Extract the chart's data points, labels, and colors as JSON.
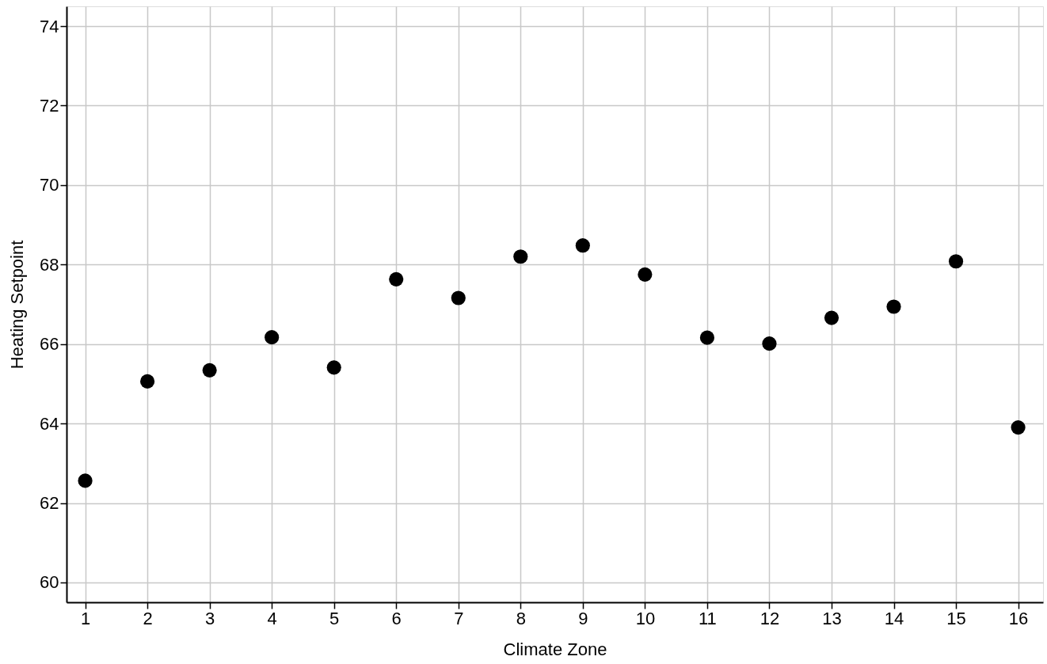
{
  "chart_data": {
    "type": "scatter",
    "xlabel": "Climate Zone",
    "ylabel": "Heating Setpoint",
    "x": [
      1,
      2,
      3,
      4,
      5,
      6,
      7,
      8,
      9,
      10,
      11,
      12,
      13,
      14,
      15,
      16
    ],
    "series": [
      {
        "color": "#000000",
        "values": [
          62.56,
          65.06,
          65.34,
          66.17,
          65.41,
          67.63,
          67.16,
          68.2,
          68.48,
          67.75,
          66.16,
          66.01,
          66.66,
          66.94,
          68.08,
          63.9
        ]
      }
    ],
    "xlim": [
      0.7,
      16.4
    ],
    "xticks": [
      1,
      2,
      3,
      4,
      5,
      6,
      7,
      8,
      9,
      10,
      11,
      12,
      13,
      14,
      15,
      16
    ],
    "ylim": [
      59.5,
      74.5
    ],
    "yticks": [
      60,
      62,
      64,
      66,
      68,
      70,
      72,
      74
    ],
    "grid": true,
    "marker": "circle"
  }
}
